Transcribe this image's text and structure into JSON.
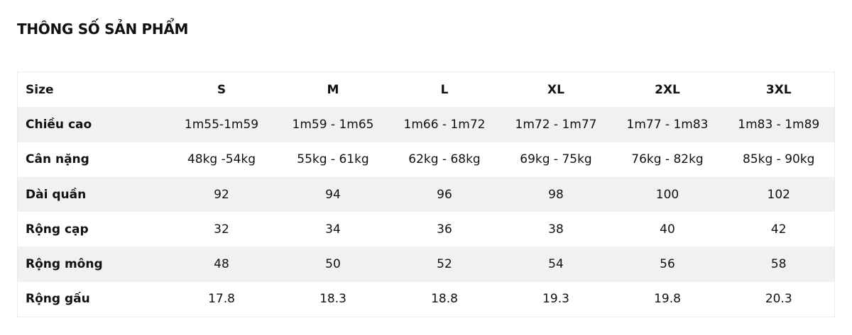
{
  "title": "THÔNG SỐ SẢN PHẨM",
  "table": {
    "header": [
      "Size",
      "S",
      "M",
      "L",
      "XL",
      "2XL",
      "3XL"
    ],
    "rows": [
      [
        "Chiều cao",
        "1m55-1m59",
        "1m59 - 1m65",
        "1m66 - 1m72",
        "1m72 - 1m77",
        "1m77 - 1m83",
        "1m83 - 1m89"
      ],
      [
        "Cân nặng",
        "48kg -54kg",
        "55kg - 61kg",
        "62kg - 68kg",
        "69kg - 75kg",
        "76kg - 82kg",
        "85kg - 90kg"
      ],
      [
        "Dài quần",
        92,
        94,
        96,
        98,
        100,
        102
      ],
      [
        "Rộng cạp",
        32,
        34,
        36,
        38,
        40,
        42
      ],
      [
        "Rộng mông",
        48,
        50,
        52,
        54,
        56,
        58
      ],
      [
        "Rộng gấu",
        17.8,
        18.3,
        18.8,
        19.3,
        19.8,
        20.3
      ]
    ]
  }
}
